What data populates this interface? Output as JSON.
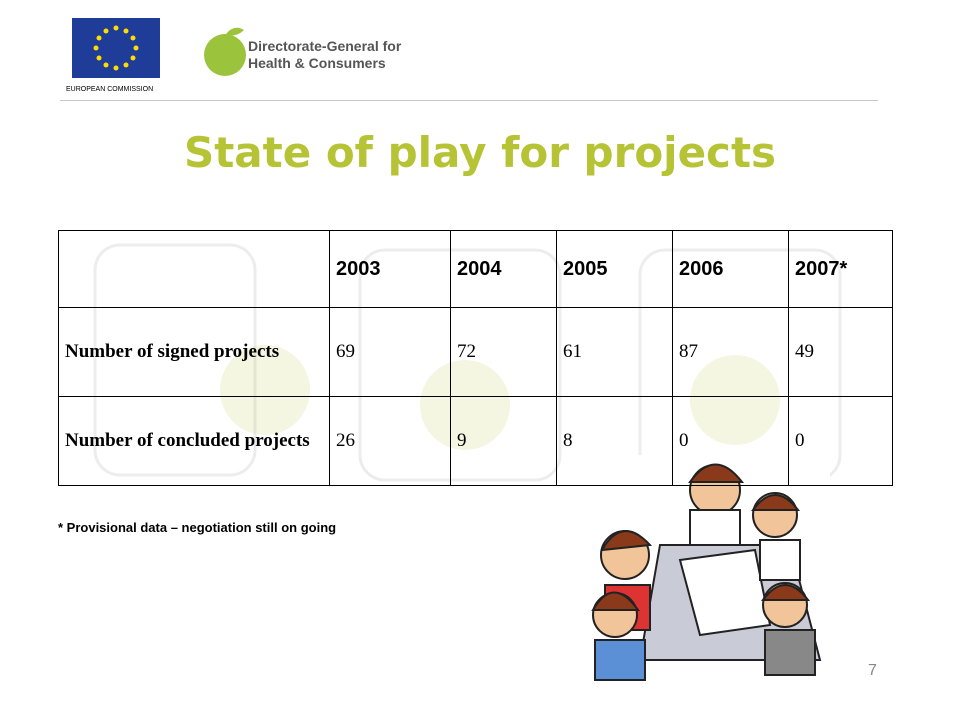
{
  "header": {
    "organization": "EUROPEAN COMMISSION",
    "dg_line1": "Directorate-General for",
    "dg_line2": "Health & Consumers"
  },
  "title": "State of play for projects",
  "table": {
    "columns": [
      "2003",
      "2004",
      "2005",
      "2006",
      "2007*"
    ],
    "rows": [
      [
        "Number of signed projects",
        69,
        72,
        61,
        87,
        49
      ],
      [
        "Number of concluded projects",
        26,
        9,
        8,
        0,
        0
      ]
    ]
  },
  "footnote": "* Provisional data – negotiation still on going",
  "page_number": "7"
}
